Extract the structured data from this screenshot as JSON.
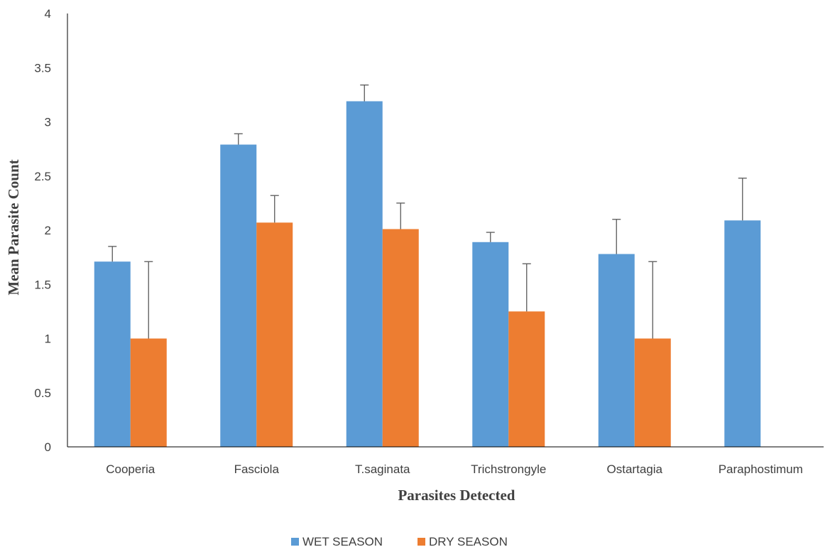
{
  "chart_data": {
    "type": "bar",
    "title": "",
    "xlabel": "Parasites Detected",
    "ylabel": "Mean Parasite Count",
    "ylim": [
      0,
      4
    ],
    "yticks": [
      "0",
      "0.5",
      "1",
      "1.5",
      "2",
      "2.5",
      "3",
      "3.5",
      "4"
    ],
    "grid": false,
    "legend_position": "bottom",
    "categories": [
      "Cooperia",
      "Fasciola",
      "T.saginata",
      "Trichstrongyle",
      "Ostartagia",
      "Paraphostimum"
    ],
    "series": [
      {
        "name": "WET SEASON",
        "color": "#5B9BD5",
        "values": [
          1.71,
          2.79,
          3.19,
          1.89,
          1.78,
          2.09
        ],
        "error": [
          0.14,
          0.1,
          0.15,
          0.09,
          0.32,
          0.39
        ]
      },
      {
        "name": "DRY SEASON",
        "color": "#ED7D31",
        "values": [
          1.0,
          2.07,
          2.01,
          1.25,
          1.0,
          0
        ],
        "error": [
          0.71,
          0.25,
          0.24,
          0.44,
          0.71,
          0
        ]
      }
    ]
  }
}
